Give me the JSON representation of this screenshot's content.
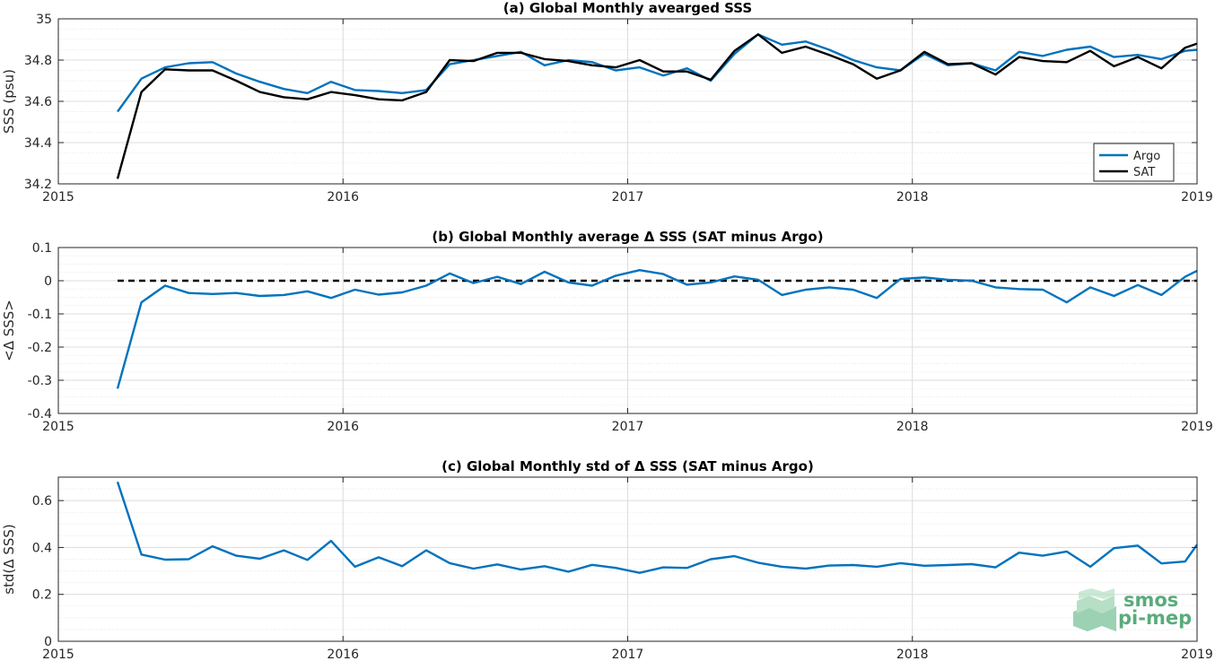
{
  "colors": {
    "argo": "#0072BD",
    "sat": "#000000",
    "zero_line": "#000000",
    "watermark": "#5aab7c"
  },
  "x_tick_labels": [
    "2015",
    "2016",
    "2017",
    "2018",
    "2019"
  ],
  "watermark": {
    "line1": "smos",
    "line2": "pi-mep"
  },
  "chart_data": [
    {
      "id": "panel-a",
      "type": "line",
      "title": "(a) Global Monthly avearged SSS",
      "xlabel": "",
      "ylabel": "SSS (psu)",
      "xlim": [
        2015,
        2019
      ],
      "ylim": [
        34.2,
        35
      ],
      "yticks": [
        34.2,
        34.4,
        34.6,
        34.8,
        35
      ],
      "ytick_labels": [
        "34.2",
        "34.4",
        "34.6",
        "34.8",
        "35"
      ],
      "grid": true,
      "legend": {
        "position": "bottom-right",
        "entries": [
          "Argo",
          "SAT"
        ]
      },
      "x": [
        2015.208,
        2015.292,
        2015.375,
        2015.458,
        2015.542,
        2015.625,
        2015.708,
        2015.792,
        2015.875,
        2015.958,
        2016.042,
        2016.125,
        2016.208,
        2016.292,
        2016.375,
        2016.458,
        2016.542,
        2016.625,
        2016.708,
        2016.792,
        2016.875,
        2016.958,
        2017.042,
        2017.125,
        2017.208,
        2017.292,
        2017.375,
        2017.458,
        2017.542,
        2017.625,
        2017.708,
        2017.792,
        2017.875,
        2017.958,
        2018.042,
        2018.125,
        2018.208,
        2018.292,
        2018.375,
        2018.458,
        2018.542,
        2018.625,
        2018.708,
        2018.792,
        2018.875,
        2018.958,
        2019.0
      ],
      "series": [
        {
          "name": "Argo",
          "color": "#0072BD",
          "values": [
            34.55,
            34.71,
            34.765,
            34.785,
            34.79,
            34.735,
            34.695,
            34.66,
            34.64,
            34.695,
            34.655,
            34.65,
            34.64,
            34.655,
            34.78,
            34.8,
            34.82,
            34.84,
            34.775,
            34.8,
            34.79,
            34.75,
            34.765,
            34.725,
            34.76,
            34.7,
            34.83,
            34.925,
            34.875,
            34.89,
            34.85,
            34.8,
            34.765,
            34.75,
            34.83,
            34.775,
            34.785,
            34.75,
            34.84,
            34.82,
            34.85,
            34.865,
            34.815,
            34.825,
            34.805,
            34.845,
            34.85
          ]
        },
        {
          "name": "SAT",
          "color": "#000000",
          "values": [
            34.225,
            34.645,
            34.755,
            34.75,
            34.75,
            34.7,
            34.645,
            34.62,
            34.61,
            34.645,
            34.63,
            34.61,
            34.605,
            34.645,
            34.8,
            34.795,
            34.835,
            34.835,
            34.805,
            34.795,
            34.775,
            34.765,
            34.8,
            34.745,
            34.745,
            34.705,
            34.845,
            34.925,
            34.835,
            34.865,
            34.825,
            34.78,
            34.71,
            34.75,
            34.84,
            34.78,
            34.785,
            34.73,
            34.815,
            34.795,
            34.79,
            34.845,
            34.77,
            34.815,
            34.76,
            34.86,
            34.88
          ]
        }
      ]
    },
    {
      "id": "panel-b",
      "type": "line",
      "title": "(b) Global Monthly average Δ SSS (SAT minus Argo)",
      "xlabel": "",
      "ylabel": "<Δ SSS>",
      "xlim": [
        2015,
        2019
      ],
      "ylim": [
        -0.4,
        0.1
      ],
      "yticks": [
        -0.4,
        -0.3,
        -0.2,
        -0.1,
        0,
        0.1
      ],
      "ytick_labels": [
        "-0.4",
        "-0.3",
        "-0.2",
        "-0.1",
        "0",
        "0.1"
      ],
      "grid": true,
      "reference_line": {
        "y": 0,
        "style": "dashed",
        "x_start": 2015.208
      },
      "x": [
        2015.208,
        2015.292,
        2015.375,
        2015.458,
        2015.542,
        2015.625,
        2015.708,
        2015.792,
        2015.875,
        2015.958,
        2016.042,
        2016.125,
        2016.208,
        2016.292,
        2016.375,
        2016.458,
        2016.542,
        2016.625,
        2016.708,
        2016.792,
        2016.875,
        2016.958,
        2017.042,
        2017.125,
        2017.208,
        2017.292,
        2017.375,
        2017.458,
        2017.542,
        2017.625,
        2017.708,
        2017.792,
        2017.875,
        2017.958,
        2018.042,
        2018.125,
        2018.208,
        2018.292,
        2018.375,
        2018.458,
        2018.542,
        2018.625,
        2018.708,
        2018.792,
        2018.875,
        2018.958,
        2019.0
      ],
      "series": [
        {
          "name": "",
          "color": "#0072BD",
          "values": [
            -0.325,
            -0.065,
            -0.015,
            -0.037,
            -0.04,
            -0.037,
            -0.046,
            -0.043,
            -0.032,
            -0.052,
            -0.027,
            -0.042,
            -0.035,
            -0.015,
            0.022,
            -0.007,
            0.012,
            -0.01,
            0.027,
            -0.005,
            -0.015,
            0.015,
            0.032,
            0.02,
            -0.012,
            -0.005,
            0.013,
            0.003,
            -0.043,
            -0.027,
            -0.02,
            -0.027,
            -0.052,
            0.005,
            0.01,
            0.003,
            0.0,
            -0.02,
            -0.025,
            -0.027,
            -0.065,
            -0.02,
            -0.046,
            -0.013,
            -0.043,
            0.012,
            0.03
          ]
        }
      ]
    },
    {
      "id": "panel-c",
      "type": "line",
      "title": "(c) Global Monthly std of Δ SSS (SAT minus Argo)",
      "xlabel": "",
      "ylabel": "std(Δ SSS)",
      "xlim": [
        2015,
        2019
      ],
      "ylim": [
        0,
        0.7
      ],
      "yticks": [
        0,
        0.2,
        0.4,
        0.6
      ],
      "ytick_labels": [
        "0",
        "0.2",
        "0.4",
        "0.6"
      ],
      "grid": true,
      "x": [
        2015.208,
        2015.292,
        2015.375,
        2015.458,
        2015.542,
        2015.625,
        2015.708,
        2015.792,
        2015.875,
        2015.958,
        2016.042,
        2016.125,
        2016.208,
        2016.292,
        2016.375,
        2016.458,
        2016.542,
        2016.625,
        2016.708,
        2016.792,
        2016.875,
        2016.958,
        2017.042,
        2017.125,
        2017.208,
        2017.292,
        2017.375,
        2017.458,
        2017.542,
        2017.625,
        2017.708,
        2017.792,
        2017.875,
        2017.958,
        2018.042,
        2018.125,
        2018.208,
        2018.292,
        2018.375,
        2018.458,
        2018.542,
        2018.625,
        2018.708,
        2018.792,
        2018.875,
        2018.958,
        2019.0
      ],
      "series": [
        {
          "name": "",
          "color": "#0072BD",
          "values": [
            0.68,
            0.37,
            0.348,
            0.35,
            0.405,
            0.365,
            0.352,
            0.388,
            0.347,
            0.428,
            0.318,
            0.358,
            0.32,
            0.388,
            0.333,
            0.31,
            0.328,
            0.306,
            0.32,
            0.297,
            0.326,
            0.313,
            0.292,
            0.315,
            0.313,
            0.35,
            0.363,
            0.335,
            0.318,
            0.31,
            0.323,
            0.325,
            0.318,
            0.333,
            0.322,
            0.325,
            0.329,
            0.315,
            0.378,
            0.365,
            0.383,
            0.318,
            0.397,
            0.408,
            0.332,
            0.34,
            0.412
          ]
        }
      ]
    }
  ]
}
